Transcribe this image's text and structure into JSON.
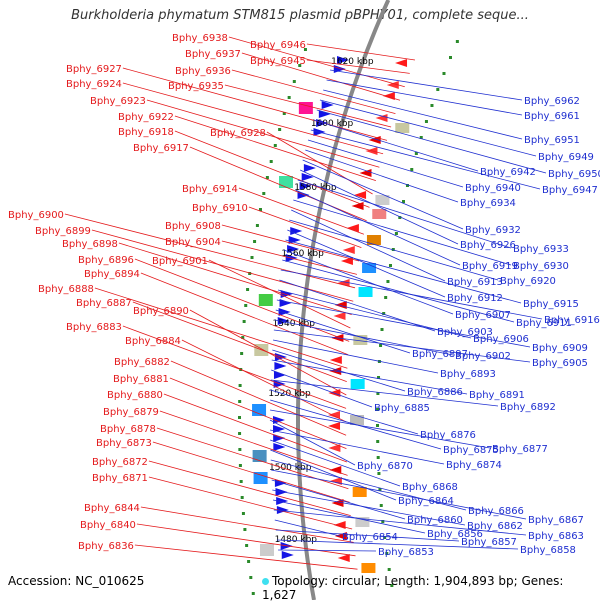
{
  "title": "Burkholderia phymatum STM815 plasmid pBPHY01, complete seque...",
  "accession": "Accession: NC_010625",
  "topology": "Topology: circular; Length: 1,904,893 bp; Genes: 1,627",
  "colors": {
    "left_label": "#e41a1c",
    "right_label": "#1f2fd0",
    "backbone": "#888888",
    "tick_green": "#2a8a2a"
  },
  "kbp_ticks": [
    "1620 kbp",
    "1600 kbp",
    "1580 kbp",
    "1560 kbp",
    "1540 kbp",
    "1520 kbp",
    "1500 kbp",
    "1480 kbp"
  ],
  "left_labels": [
    "Bphy_6946",
    "Bphy_6945",
    "Bphy_6938",
    "Bphy_6937",
    "Bphy_6936",
    "Bphy_6935",
    "Bphy_6927",
    "Bphy_6924",
    "Bphy_6923",
    "Bphy_6922",
    "Bphy_6928",
    "Bphy_6918",
    "Bphy_6917",
    "Bphy_6914",
    "Bphy_6910",
    "Bphy_6908",
    "Bphy_6904",
    "Bphy_6900",
    "Bphy_6899",
    "Bphy_6898",
    "Bphy_6901",
    "Bphy_6896",
    "Bphy_6894",
    "Bphy_6888",
    "Bphy_6887",
    "Bphy_6890",
    "Bphy_6883",
    "Bphy_6884",
    "Bphy_6882",
    "Bphy_6881",
    "Bphy_6880",
    "Bphy_6879",
    "Bphy_6878",
    "Bphy_6873",
    "Bphy_6872",
    "Bphy_6871",
    "Bphy_6844",
    "Bphy_6840",
    "Bphy_6836"
  ],
  "right_labels": [
    "Bphy_6962",
    "Bphy_6961",
    "Bphy_6951",
    "Bphy_6949",
    "Bphy_6950",
    "Bphy_6942",
    "Bphy_6947",
    "Bphy_6940",
    "Bphy_6934",
    "Bphy_6932",
    "Bphy_6926",
    "Bphy_6933",
    "Bphy_6919",
    "Bphy_6930",
    "Bphy_6913",
    "Bphy_6920",
    "Bphy_6912",
    "Bphy_6915",
    "Bphy_6907",
    "Bphy_6911",
    "Bphy_6916",
    "Bphy_6903",
    "Bphy_6906",
    "Bphy_6909",
    "Bphy_6897",
    "Bphy_6902",
    "Bphy_6905",
    "Bphy_6893",
    "Bphy_6886",
    "Bphy_6891",
    "Bphy_6885",
    "Bphy_6892",
    "Bphy_6876",
    "Bphy_6875",
    "Bphy_6877",
    "Bphy_6870",
    "Bphy_6874",
    "Bphy_6868",
    "Bphy_6864",
    "Bphy_6866",
    "Bphy_6867",
    "Bphy_6860",
    "Bphy_6862",
    "Bphy_6856",
    "Bphy_6863",
    "Bphy_6854",
    "Bphy_6857",
    "Bphy_6858",
    "Bphy_6853"
  ]
}
